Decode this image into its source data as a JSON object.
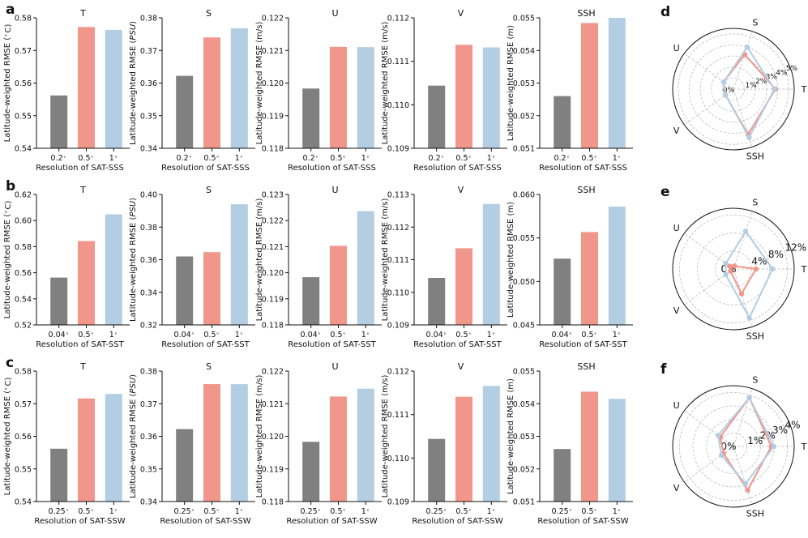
{
  "colors": {
    "low": "#808080",
    "mid": "#f1968b",
    "high": "#b3cde3",
    "axis": "#111111",
    "grid": "#bbbbbb"
  },
  "chart_data": [
    {
      "row": "a",
      "type": "bar",
      "xlabel": "Resolution of SAT-SSS",
      "categories": [
        "0.2$^\\circ$",
        "0.5$^\\circ$",
        "1$^\\circ$"
      ],
      "panels": [
        {
          "title": "T",
          "ylabel": "Latitude-weighted RMSE ($^\\circ$C)",
          "ylim": [
            0.54,
            0.58
          ],
          "yticks": [
            0.54,
            0.55,
            0.56,
            0.57,
            0.58
          ],
          "ytick_labels": [
            "0.54",
            "0.55",
            "0.56",
            "0.57",
            "0.58"
          ],
          "values": [
            0.5562,
            0.5772,
            0.5763
          ]
        },
        {
          "title": "S",
          "ylabel": "Latitude-weighted RMSE ($PSU$)",
          "ylim": [
            0.34,
            0.38
          ],
          "yticks": [
            0.34,
            0.35,
            0.36,
            0.37,
            0.38
          ],
          "ytick_labels": [
            "0.34",
            "0.35",
            "0.36",
            "0.37",
            "0.38"
          ],
          "values": [
            0.3622,
            0.374,
            0.3768
          ]
        },
        {
          "title": "U",
          "ylabel": "Latitude-weighted RMSE (m/s)",
          "ylim": [
            0.118,
            0.122
          ],
          "yticks": [
            0.118,
            0.119,
            0.12,
            0.121,
            0.122
          ],
          "ytick_labels": [
            "0.118",
            "0.119",
            "0.120",
            "0.121",
            "0.122"
          ],
          "values": [
            0.11983,
            0.12111,
            0.1211
          ]
        },
        {
          "title": "V",
          "ylabel": "Latitude-weighted RMSE (m/s)",
          "ylim": [
            0.109,
            0.112
          ],
          "yticks": [
            0.109,
            0.11,
            0.111,
            0.112
          ],
          "ytick_labels": [
            "0.109",
            "0.110",
            "0.111",
            "0.112"
          ],
          "values": [
            0.11044,
            0.11138,
            0.11132
          ]
        },
        {
          "title": "SSH",
          "ylabel": "Latitude-weighted RMSE ($m$)",
          "ylim": [
            0.051,
            0.055
          ],
          "yticks": [
            0.051,
            0.052,
            0.053,
            0.054,
            0.055
          ],
          "ytick_labels": [
            "0.051",
            "0.052",
            "0.053",
            "0.054",
            "0.055"
          ],
          "values": [
            0.0526,
            0.05484,
            0.055
          ]
        }
      ]
    },
    {
      "row": "b",
      "type": "bar",
      "xlabel": "Resolution of SAT-SST",
      "categories": [
        "0.04$^\\circ$",
        "0.5$^\\circ$",
        "1$^\\circ$"
      ],
      "panels": [
        {
          "title": "T",
          "ylabel": "Latitude-weighted RMSE ($^\\circ$C)",
          "ylim": [
            0.52,
            0.62
          ],
          "yticks": [
            0.52,
            0.54,
            0.56,
            0.58,
            0.6,
            0.62
          ],
          "ytick_labels": [
            "0.52",
            "0.54",
            "0.56",
            "0.58",
            "0.60",
            "0.62"
          ],
          "values": [
            0.5563,
            0.5843,
            0.6048
          ]
        },
        {
          "title": "S",
          "ylabel": "Latitude-weighted RMSE ($PSU$)",
          "ylim": [
            0.32,
            0.4
          ],
          "yticks": [
            0.32,
            0.34,
            0.36,
            0.38,
            0.4
          ],
          "ytick_labels": [
            "0.32",
            "0.34",
            "0.36",
            "0.38",
            "0.40"
          ],
          "values": [
            0.362,
            0.3646,
            0.394
          ]
        },
        {
          "title": "U",
          "ylabel": "Latitude-weighted RMSE (m/s)",
          "ylim": [
            0.118,
            0.123
          ],
          "yticks": [
            0.118,
            0.119,
            0.12,
            0.121,
            0.122,
            0.123
          ],
          "ytick_labels": [
            "0.118",
            "0.119",
            "0.120",
            "0.121",
            "0.122",
            "0.123"
          ],
          "values": [
            0.11983,
            0.12103,
            0.12236
          ]
        },
        {
          "title": "V",
          "ylabel": "Latitude-weighted RMSE (m/s)",
          "ylim": [
            0.109,
            0.113
          ],
          "yticks": [
            0.109,
            0.11,
            0.111,
            0.112,
            0.113
          ],
          "ytick_labels": [
            "0.109",
            "0.110",
            "0.111",
            "0.112",
            "0.113"
          ],
          "values": [
            0.11044,
            0.11135,
            0.11271
          ]
        },
        {
          "title": "SSH",
          "ylabel": "Latitude-weighted RMSE (m)",
          "ylim": [
            0.045,
            0.06
          ],
          "yticks": [
            0.045,
            0.05,
            0.055,
            0.06
          ],
          "ytick_labels": [
            "0.045",
            "0.050",
            "0.055",
            "0.060"
          ],
          "values": [
            0.05262,
            0.05568,
            0.0586
          ]
        }
      ]
    },
    {
      "row": "c",
      "type": "bar",
      "xlabel": "Resolution of SAT-SSW",
      "categories": [
        "0.25$^\\circ$",
        "0.5$^\\circ$",
        "1$^\\circ$"
      ],
      "panels": [
        {
          "title": "T",
          "ylabel": "Latitude-weighted RMSE ($^\\circ$C)",
          "ylim": [
            0.54,
            0.58
          ],
          "yticks": [
            0.54,
            0.55,
            0.56,
            0.57,
            0.58
          ],
          "ytick_labels": [
            "0.54",
            "0.55",
            "0.56",
            "0.57",
            "0.58"
          ],
          "values": [
            0.5562,
            0.5716,
            0.573
          ]
        },
        {
          "title": "S",
          "ylabel": "Latitude-weighted RMSE ($PSU$)",
          "ylim": [
            0.34,
            0.38
          ],
          "yticks": [
            0.34,
            0.35,
            0.36,
            0.37,
            0.38
          ],
          "ytick_labels": [
            "0.34",
            "0.35",
            "0.36",
            "0.37",
            "0.38"
          ],
          "values": [
            0.3622,
            0.376,
            0.376
          ]
        },
        {
          "title": "U",
          "ylabel": "Latitude-weighted RMSE (m/s)",
          "ylim": [
            0.118,
            0.122
          ],
          "yticks": [
            0.118,
            0.119,
            0.12,
            0.121,
            0.122
          ],
          "ytick_labels": [
            "0.118",
            "0.119",
            "0.120",
            "0.121",
            "0.122"
          ],
          "values": [
            0.11983,
            0.12122,
            0.12146
          ]
        },
        {
          "title": "V",
          "ylabel": "Latitude-weighted RMSE (m/s)",
          "ylim": [
            0.109,
            0.112
          ],
          "yticks": [
            0.109,
            0.11,
            0.111,
            0.112
          ],
          "ytick_labels": [
            "0.109",
            "0.110",
            "0.111",
            "0.112"
          ],
          "values": [
            0.11044,
            0.11141,
            0.11166
          ]
        },
        {
          "title": "SSH",
          "ylabel": "Latitude-weighted RMSE (m)",
          "ylim": [
            0.051,
            0.055
          ],
          "yticks": [
            0.051,
            0.052,
            0.053,
            0.054,
            0.055
          ],
          "ytick_labels": [
            "0.051",
            "0.052",
            "0.053",
            "0.054",
            "0.055"
          ],
          "values": [
            0.05261,
            0.05437,
            0.05415
          ]
        }
      ]
    },
    {
      "row": "d",
      "type": "radar",
      "axes": [
        "T",
        "S",
        "U",
        "V",
        "SSH"
      ],
      "rticks": [
        0,
        1,
        2,
        3,
        4,
        5
      ],
      "rtick_labels": [
        "0%",
        "1%",
        "2%",
        "3%",
        "4%",
        "5%"
      ],
      "rmax": 5.5,
      "series": [
        {
          "name": "0.5$^\\circ$",
          "color_key": "mid",
          "values": [
            3.8,
            3.3,
            1.1,
            0.9,
            4.3
          ]
        },
        {
          "name": "1$^\\circ$",
          "color_key": "high",
          "values": [
            3.7,
            4.0,
            1.1,
            0.9,
            4.6
          ]
        }
      ]
    },
    {
      "row": "e",
      "type": "radar",
      "axes": [
        "T",
        "S",
        "U",
        "V",
        "SSH"
      ],
      "rticks": [
        0,
        4,
        8,
        12
      ],
      "rtick_labels": [
        "0%",
        "4%",
        "8%",
        "12%"
      ],
      "rmax": 13.5,
      "series": [
        {
          "name": "0.5$^\\circ$",
          "color_key": "mid",
          "values": [
            5.0,
            0.7,
            1.0,
            0.8,
            5.8
          ]
        },
        {
          "name": "1$^\\circ$",
          "color_key": "high",
          "values": [
            8.7,
            8.8,
            2.1,
            2.1,
            11.4
          ]
        }
      ]
    },
    {
      "row": "f",
      "type": "radar",
      "axes": [
        "T",
        "S",
        "U",
        "V",
        "SSH"
      ],
      "rticks": [
        0,
        1,
        2,
        3,
        4
      ],
      "rtick_labels": [
        "0%",
        "1%",
        "2%",
        "3%",
        "4%"
      ],
      "rmax": 4.5,
      "series": [
        {
          "name": "0.5$^\\circ$",
          "color_key": "mid",
          "values": [
            2.8,
            3.8,
            1.2,
            0.9,
            3.4
          ]
        },
        {
          "name": "1$^\\circ$",
          "color_key": "high",
          "values": [
            3.0,
            3.8,
            1.4,
            1.1,
            2.9
          ]
        }
      ]
    }
  ]
}
